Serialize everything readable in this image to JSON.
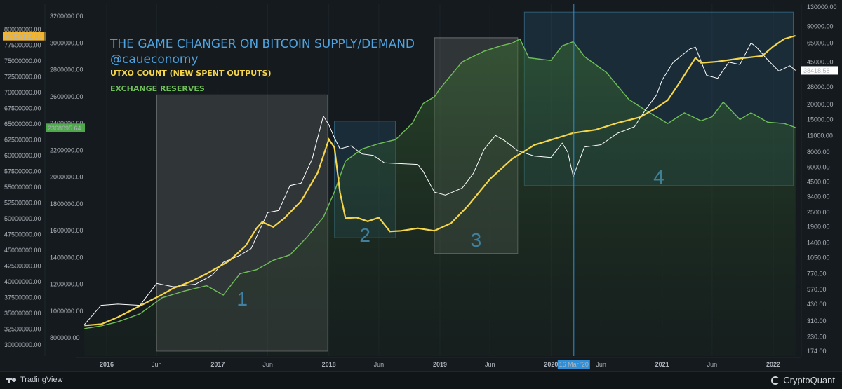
{
  "chart_data": {
    "type": "line",
    "title": "THE GAME CHANGER ON BITCOIN SUPPLY/DEMAND",
    "subtitle": "@caueconomy",
    "legend": [
      {
        "label": "UTXO COUNT (NEW SPENT OUTPUTS)",
        "color": "#f5d64a"
      },
      {
        "label": "EXCHANGE RESERVES",
        "color": "#6fbf58"
      }
    ],
    "x_ticks": [
      "2016",
      "Jun",
      "2017",
      "Jun",
      "2018",
      "Jun",
      "2019",
      "Jun",
      "2020",
      "Jun",
      "2021",
      "Jun",
      "2022"
    ],
    "left_axis_outer": {
      "ticks": [
        "82500000.00",
        "80000000.00",
        "77500000.00",
        "75000000.00",
        "72500000.00",
        "70000000.00",
        "67500000.00",
        "65000000.00",
        "62500000.00",
        "60000000.00",
        "57500000.00",
        "55000000.00",
        "52500000.00",
        "50000000.00",
        "47500000.00",
        "45000000.00",
        "42500000.00",
        "40000000.00",
        "37500000.00",
        "35000000.00",
        "32500000.00",
        "30000000.00"
      ],
      "range": [
        28250000,
        84000000
      ],
      "current_label": "78927151.00"
    },
    "left_axis_inner": {
      "ticks": [
        "3200000.00",
        "3000000.00",
        "2800000.00",
        "2600000.00",
        "2400000.00",
        "2200000.00",
        "2000000.00",
        "1800000.00",
        "1600000.00",
        "1400000.00",
        "1200000.00",
        "1000000.00",
        "800000.00"
      ],
      "range": [
        665000,
        3290000
      ],
      "current_label": "2368095.64"
    },
    "right_axis": {
      "scale": "log",
      "ticks": [
        "130000.00",
        "90000.00",
        "65000.00",
        "45000.00",
        "28000.00",
        "20000.00",
        "15000.00",
        "11000.00",
        "8000.00",
        "6000.00",
        "4500.00",
        "3400.00",
        "2500.00",
        "1900.00",
        "1400.00",
        "1050.00",
        "770.00",
        "570.00",
        "430.00",
        "310.00",
        "230.00",
        "174.00"
      ],
      "current_label": "38418.58"
    },
    "crosshair_label": "16 Mar '20",
    "boxes": [
      {
        "label": "1",
        "start": 2016.45,
        "end": 2017.99,
        "low": 174,
        "high": 24000,
        "color": "gray"
      },
      {
        "label": "2",
        "start": 2018.05,
        "end": 2018.6,
        "low": 1540,
        "high": 14500,
        "color": "blue"
      },
      {
        "label": "3",
        "start": 2018.95,
        "end": 2019.7,
        "low": 1140,
        "high": 72000,
        "color": "gray"
      },
      {
        "label": "4",
        "start": 2019.76,
        "end": 2022.18,
        "low": 4200,
        "high": 118000,
        "color": "blue"
      }
    ],
    "series": [
      {
        "name": "UTXO COUNT (NEW SPENT OUTPUTS)",
        "axis": "outer_left",
        "color": "#f5d64a",
        "x": [
          2015.8,
          2015.95,
          2016.1,
          2016.3,
          2016.5,
          2016.6,
          2016.75,
          2016.9,
          2017.1,
          2017.25,
          2017.35,
          2017.4,
          2017.5,
          2017.6,
          2017.75,
          2017.9,
          2018.0,
          2018.05,
          2018.1,
          2018.15,
          2018.25,
          2018.35,
          2018.45,
          2018.55,
          2018.65,
          2018.8,
          2018.95,
          2019.1,
          2019.25,
          2019.45,
          2019.65,
          2019.85,
          2020.0,
          2020.2,
          2020.4,
          2020.6,
          2020.8,
          2020.95,
          2021.05,
          2021.15,
          2021.3,
          2021.35,
          2021.5,
          2021.7,
          2021.9,
          2022.0,
          2022.1,
          2022.2
        ],
        "values": [
          33100000,
          33300000,
          34400000,
          36200000,
          38000000,
          39000000,
          40000000,
          41300000,
          43300000,
          45700000,
          48500000,
          49500000,
          48700000,
          50100000,
          52800000,
          57300000,
          62600000,
          61300000,
          54200000,
          50100000,
          50200000,
          49600000,
          50200000,
          48000000,
          48100000,
          48500000,
          48100000,
          49300000,
          52000000,
          56300000,
          59500000,
          61700000,
          62500000,
          63600000,
          64100000,
          65200000,
          66100000,
          67600000,
          68800000,
          71400000,
          75500000,
          74700000,
          74900000,
          75400000,
          75800000,
          77300000,
          78500000,
          79000000
        ]
      },
      {
        "name": "EXCHANGE RESERVES",
        "axis": "inner_left",
        "color": "#6fbf58",
        "x": [
          2015.8,
          2015.95,
          2016.1,
          2016.3,
          2016.5,
          2016.7,
          2016.9,
          2017.05,
          2017.2,
          2017.35,
          2017.5,
          2017.65,
          2017.8,
          2017.95,
          2018.05,
          2018.15,
          2018.3,
          2018.45,
          2018.6,
          2018.75,
          2018.85,
          2018.95,
          2019.0,
          2019.2,
          2019.4,
          2019.55,
          2019.65,
          2019.72,
          2019.8,
          2020.0,
          2020.1,
          2020.2,
          2020.3,
          2020.5,
          2020.7,
          2020.85,
          2020.95,
          2021.05,
          2021.2,
          2021.35,
          2021.45,
          2021.55,
          2021.7,
          2021.8,
          2021.95,
          2022.1,
          2022.2
        ],
        "values": [
          870000,
          890000,
          920000,
          980000,
          1100000,
          1150000,
          1190000,
          1120000,
          1280000,
          1310000,
          1380000,
          1420000,
          1550000,
          1700000,
          1890000,
          2120000,
          2210000,
          2250000,
          2280000,
          2400000,
          2550000,
          2600000,
          2660000,
          2860000,
          2940000,
          2980000,
          3000000,
          3030000,
          2890000,
          2870000,
          2980000,
          3010000,
          2900000,
          2780000,
          2580000,
          2500000,
          2450000,
          2400000,
          2480000,
          2420000,
          2450000,
          2560000,
          2430000,
          2480000,
          2410000,
          2400000,
          2370000
        ]
      },
      {
        "name": "BTC price",
        "axis": "right",
        "color": "#ffffff",
        "x": [
          2015.8,
          2015.95,
          2016.1,
          2016.3,
          2016.45,
          2016.6,
          2016.8,
          2016.95,
          2017.05,
          2017.2,
          2017.3,
          2017.45,
          2017.55,
          2017.65,
          2017.75,
          2017.85,
          2017.95,
          2018.0,
          2018.05,
          2018.1,
          2018.2,
          2018.3,
          2018.4,
          2018.5,
          2018.65,
          2018.8,
          2018.85,
          2018.95,
          2019.05,
          2019.2,
          2019.3,
          2019.4,
          2019.5,
          2019.58,
          2019.7,
          2019.85,
          2020.0,
          2020.1,
          2020.15,
          2020.2,
          2020.3,
          2020.45,
          2020.6,
          2020.75,
          2020.85,
          2020.95,
          2021.0,
          2021.1,
          2021.25,
          2021.3,
          2021.4,
          2021.5,
          2021.6,
          2021.7,
          2021.8,
          2021.85,
          2021.95,
          2022.05,
          2022.15,
          2022.2
        ],
        "values": [
          290,
          420,
          430,
          420,
          640,
          600,
          630,
          750,
          960,
          1100,
          1250,
          2500,
          2600,
          4200,
          4400,
          7000,
          16000,
          13500,
          10500,
          8500,
          9000,
          7700,
          7500,
          6500,
          6400,
          6300,
          5500,
          3700,
          3500,
          4000,
          5300,
          8500,
          11000,
          10000,
          8200,
          7400,
          7200,
          9500,
          8000,
          5000,
          8800,
          9200,
          11500,
          13000,
          18000,
          24000,
          32000,
          45000,
          58000,
          60000,
          35000,
          33000,
          45000,
          43000,
          65000,
          60000,
          47000,
          38000,
          42000,
          38400
        ]
      }
    ]
  }
}
